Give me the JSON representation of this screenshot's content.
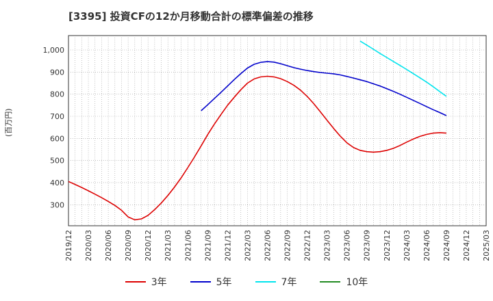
{
  "chart_data": {
    "type": "line",
    "title": "[3395]  投資CFの12か月移動合計の標準偏差の推移",
    "ylabel": "(百万円)",
    "xlabel": "",
    "ylim": [
      205,
      1065
    ],
    "yticks": [
      300,
      400,
      500,
      600,
      700,
      800,
      900,
      1000
    ],
    "ytick_labels": [
      "300",
      "400",
      "500",
      "600",
      "700",
      "800",
      "900",
      "1,000"
    ],
    "x_range": [
      "2019-12",
      "2025-03"
    ],
    "x_tick_labels": [
      "2019/12",
      "2020/03",
      "2020/06",
      "2020/09",
      "2020/12",
      "2021/03",
      "2021/06",
      "2021/09",
      "2021/12",
      "2022/03",
      "2022/06",
      "2022/09",
      "2022/12",
      "2023/03",
      "2023/06",
      "2023/09",
      "2023/12",
      "2024/03",
      "2024/06",
      "2024/09",
      "2024/12",
      "2025/03"
    ],
    "grid": true,
    "legend_position": "bottom",
    "series": [
      {
        "name": "3年",
        "color": "#dd0000",
        "x": [
          "2019-12",
          "2020-01",
          "2020-02",
          "2020-03",
          "2020-04",
          "2020-05",
          "2020-06",
          "2020-07",
          "2020-08",
          "2020-09",
          "2020-10",
          "2020-11",
          "2020-12",
          "2021-01",
          "2021-02",
          "2021-03",
          "2021-04",
          "2021-05",
          "2021-06",
          "2021-07",
          "2021-08",
          "2021-09",
          "2021-10",
          "2021-11",
          "2021-12",
          "2022-01",
          "2022-02",
          "2022-03",
          "2022-04",
          "2022-05",
          "2022-06",
          "2022-07",
          "2022-08",
          "2022-09",
          "2022-10",
          "2022-11",
          "2022-12",
          "2023-01",
          "2023-02",
          "2023-03",
          "2023-04",
          "2023-05",
          "2023-06",
          "2023-07",
          "2023-08",
          "2023-09",
          "2023-10",
          "2023-11",
          "2023-12",
          "2024-01",
          "2024-02",
          "2024-03",
          "2024-04",
          "2024-05",
          "2024-06",
          "2024-07",
          "2024-08",
          "2024-09"
        ],
        "values": [
          405,
          392,
          378,
          363,
          348,
          332,
          315,
          297,
          275,
          245,
          232,
          236,
          252,
          278,
          308,
          342,
          380,
          422,
          468,
          516,
          566,
          617,
          664,
          708,
          750,
          786,
          820,
          850,
          869,
          878,
          881,
          878,
          870,
          857,
          840,
          818,
          790,
          757,
          720,
          682,
          645,
          610,
          580,
          559,
          546,
          540,
          538,
          540,
          546,
          555,
          568,
          583,
          597,
          609,
          618,
          624,
          626,
          624
        ]
      },
      {
        "name": "5年",
        "color": "#0000cc",
        "x": [
          "2021-08",
          "2021-09",
          "2021-10",
          "2021-11",
          "2021-12",
          "2022-01",
          "2022-02",
          "2022-03",
          "2022-04",
          "2022-05",
          "2022-06",
          "2022-07",
          "2022-08",
          "2022-09",
          "2022-10",
          "2022-11",
          "2022-12",
          "2023-01",
          "2023-02",
          "2023-03",
          "2023-04",
          "2023-05",
          "2023-06",
          "2023-07",
          "2023-08",
          "2023-09",
          "2023-10",
          "2023-11",
          "2023-12",
          "2024-01",
          "2024-02",
          "2024-03",
          "2024-04",
          "2024-05",
          "2024-06",
          "2024-07",
          "2024-08",
          "2024-09"
        ],
        "values": [
          725,
          752,
          780,
          808,
          837,
          866,
          893,
          918,
          935,
          944,
          947,
          945,
          938,
          929,
          920,
          913,
          907,
          902,
          898,
          895,
          892,
          887,
          880,
          873,
          865,
          857,
          847,
          837,
          825,
          813,
          800,
          786,
          772,
          758,
          744,
          730,
          717,
          703
        ]
      },
      {
        "name": "7年",
        "color": "#00e5ee",
        "x": [
          "2023-08",
          "2023-09",
          "2023-10",
          "2023-11",
          "2023-12",
          "2024-01",
          "2024-02",
          "2024-03",
          "2024-04",
          "2024-05",
          "2024-06",
          "2024-07",
          "2024-08",
          "2024-09"
        ],
        "values": [
          1040,
          1022,
          1003,
          984,
          966,
          948,
          930,
          912,
          893,
          874,
          855,
          834,
          812,
          790
        ]
      },
      {
        "name": "10年",
        "color": "#228b22",
        "x": [],
        "values": []
      }
    ]
  }
}
